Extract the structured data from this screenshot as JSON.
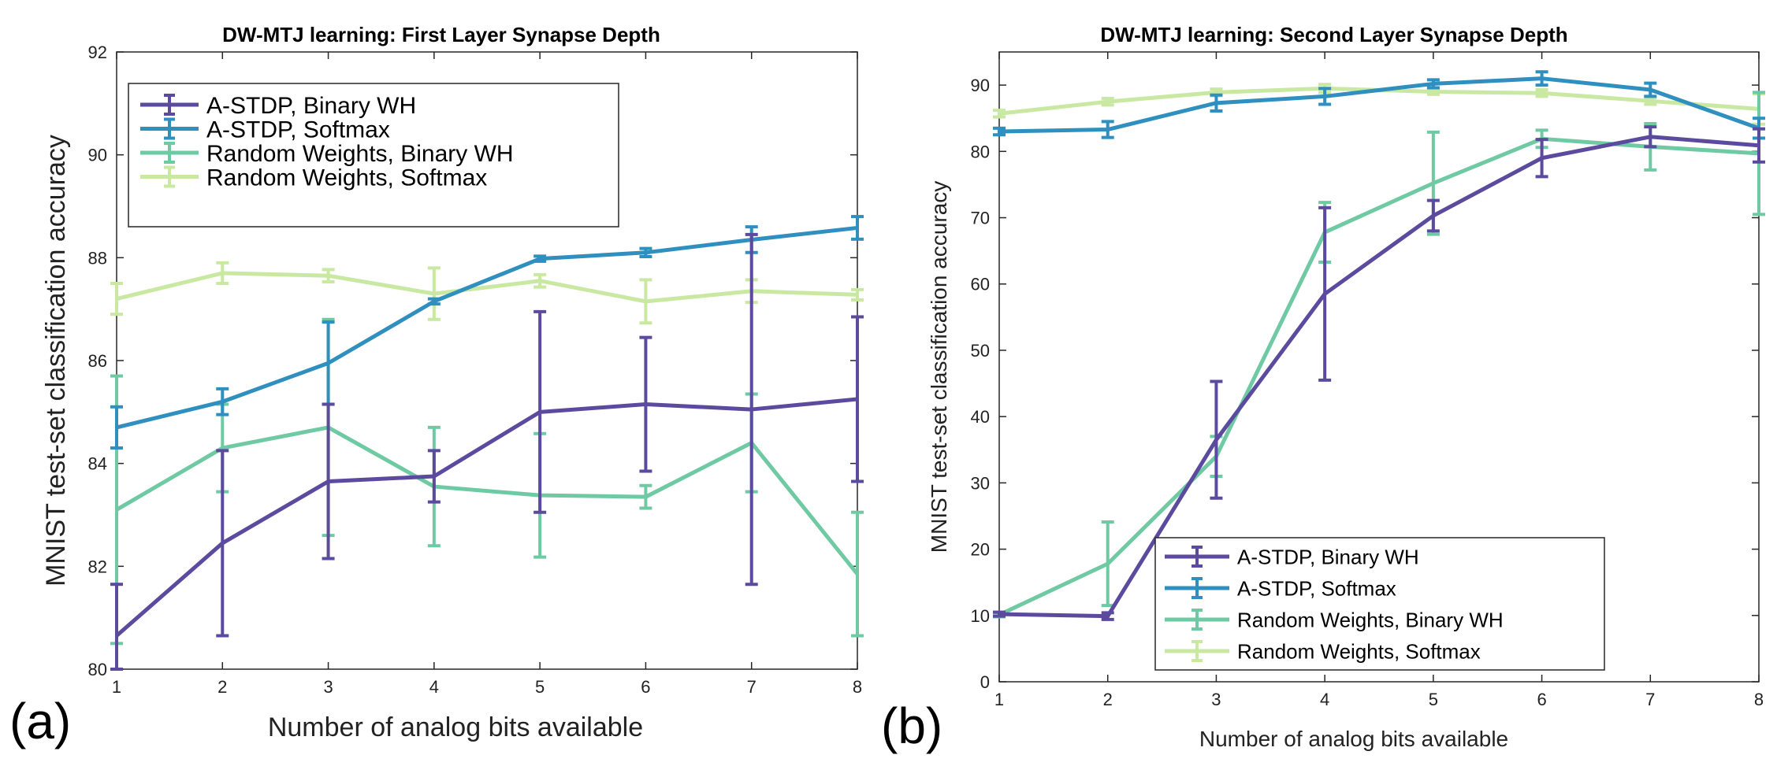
{
  "chart_data": [
    {
      "type": "line",
      "panel_label": "(a)",
      "title": "DW-MTJ learning: First Layer Synapse Depth",
      "xlabel": "Number of analog bits available",
      "ylabel": "MNIST test-set classification accuracy",
      "xlim": [
        1,
        8
      ],
      "ylim": [
        80,
        92
      ],
      "xticks": [
        "1",
        "2",
        "3",
        "4",
        "5",
        "6",
        "7",
        "8"
      ],
      "yticks": [
        "80",
        "82",
        "84",
        "86",
        "88",
        "90",
        "92"
      ],
      "grid": false,
      "legend_position": "top-left",
      "x": [
        1,
        2,
        3,
        4,
        5,
        6,
        7,
        8
      ],
      "series": [
        {
          "name": "A-STDP, Binary WH",
          "color": "#5b4a9e",
          "values": [
            80.65,
            82.45,
            83.65,
            83.75,
            85.0,
            85.15,
            85.05,
            85.25
          ],
          "err": [
            1.0,
            1.8,
            1.5,
            0.5,
            1.95,
            1.3,
            3.4,
            1.6
          ]
        },
        {
          "name": " A-STDP, Softmax",
          "color": "#2f8fbf",
          "values": [
            84.7,
            85.2,
            85.95,
            87.15,
            87.98,
            88.1,
            88.35,
            88.58
          ],
          "err": [
            0.4,
            0.25,
            0.8,
            0.05,
            0.05,
            0.08,
            0.25,
            0.22
          ]
        },
        {
          "name": "Random Weights, Binary WH",
          "color": "#6fcaa4",
          "values": [
            83.1,
            84.3,
            84.7,
            83.55,
            83.38,
            83.35,
            84.4,
            81.85
          ],
          "err": [
            2.6,
            0.85,
            2.1,
            1.15,
            1.2,
            0.22,
            0.95,
            1.2
          ]
        },
        {
          "name": "Random Weights, Softmax",
          "color": "#c9e8a2",
          "values": [
            87.2,
            87.7,
            87.65,
            87.3,
            87.55,
            87.15,
            87.35,
            87.28
          ],
          "err": [
            0.3,
            0.2,
            0.12,
            0.5,
            0.12,
            0.42,
            0.22,
            0.1
          ]
        }
      ]
    },
    {
      "type": "line",
      "panel_label": "(b)",
      "title": "DW-MTJ learning: Second Layer Synapse Depth",
      "xlabel": "Number of analog bits available",
      "ylabel": "MNIST test-set classification accuracy",
      "xlim": [
        1,
        8
      ],
      "ylim": [
        0,
        95
      ],
      "xticks": [
        "1",
        "2",
        "3",
        "4",
        "5",
        "6",
        "7",
        "8"
      ],
      "yticks": [
        "0",
        "10",
        "20",
        "30",
        "40",
        "50",
        "60",
        "70",
        "80",
        "90"
      ],
      "grid": false,
      "legend_position": "bottom-center",
      "x": [
        1,
        2,
        3,
        4,
        5,
        6,
        7,
        8
      ],
      "series": [
        {
          "name": "A-STDP, Binary WH",
          "color": "#5b4a9e",
          "values": [
            10.2,
            9.9,
            36.5,
            58.5,
            70.3,
            79.0,
            82.2,
            80.9
          ],
          "err": [
            0.3,
            0.5,
            8.8,
            13.0,
            2.3,
            2.8,
            1.5,
            2.5
          ]
        },
        {
          "name": " A-STDP, Softmax",
          "color": "#2f8fbf",
          "values": [
            83.0,
            83.3,
            87.3,
            88.3,
            90.2,
            91.0,
            89.3,
            83.5
          ],
          "err": [
            0.5,
            1.2,
            1.2,
            1.2,
            0.6,
            1.0,
            1.0,
            1.5
          ]
        },
        {
          "name": "Random Weights, Binary WH",
          "color": "#6fcaa4",
          "values": [
            10.1,
            17.8,
            34.0,
            67.8,
            75.2,
            81.9,
            80.7,
            79.7
          ],
          "err": [
            0.3,
            6.3,
            3.0,
            4.5,
            7.7,
            1.3,
            3.5,
            9.2
          ]
        },
        {
          "name": "Random Weights, Softmax",
          "color": "#c9e8a2",
          "values": [
            85.7,
            87.5,
            88.9,
            89.5,
            89.0,
            88.8,
            87.6,
            86.4
          ],
          "err": [
            0.5,
            0.5,
            0.5,
            0.6,
            0.4,
            0.5,
            0.5,
            2.3
          ]
        }
      ]
    }
  ]
}
